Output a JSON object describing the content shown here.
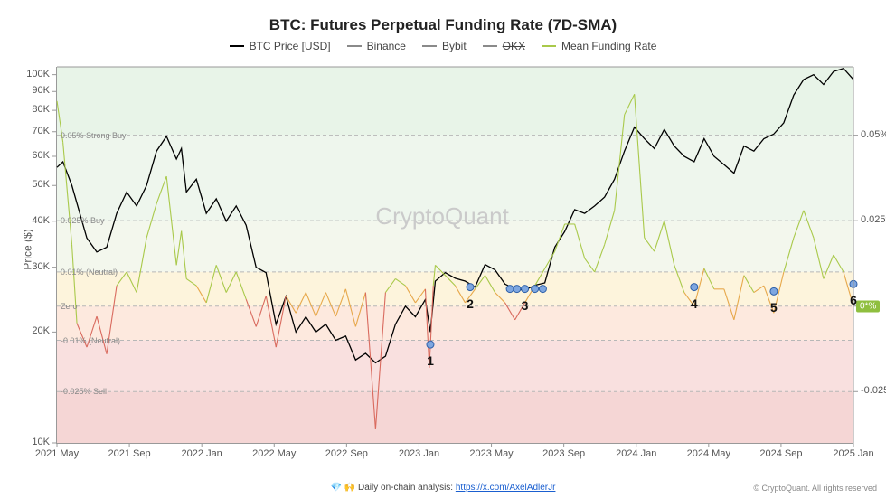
{
  "title": {
    "text": "BTC: Futures Perpetual Funding Rate (7D-SMA)",
    "fontsize": 17
  },
  "legend": {
    "items": [
      {
        "label": "BTC Price [USD]",
        "color": "#000000",
        "strike": false
      },
      {
        "label": "Binance",
        "color": "#8a8a8a",
        "strike": false
      },
      {
        "label": "Bybit",
        "color": "#8a8a8a",
        "strike": false
      },
      {
        "label": "OKX",
        "color": "#8a8a8a",
        "strike": true
      },
      {
        "label": "Mean Funding Rate",
        "color": "#a9c94a",
        "strike": false
      }
    ],
    "fontsize": 12
  },
  "axes": {
    "x": {
      "ticks": [
        "2021 May",
        "2021 Sep",
        "2022 Jan",
        "2022 May",
        "2022 Sep",
        "2023 Jan",
        "2023 May",
        "2023 Sep",
        "2024 Jan",
        "2024 May",
        "2024 Sep",
        "2025 Jan"
      ],
      "fontsize": 11
    },
    "y_left": {
      "label": "Price ($)",
      "scale": "log",
      "min": 10000,
      "max": 105000,
      "ticks": [
        {
          "v": 10000,
          "label": "10K"
        },
        {
          "v": 20000,
          "label": "20K"
        },
        {
          "v": 30000,
          "label": "30K"
        },
        {
          "v": 40000,
          "label": "40K"
        },
        {
          "v": 50000,
          "label": "50K"
        },
        {
          "v": 60000,
          "label": "60K"
        },
        {
          "v": 70000,
          "label": "70K"
        },
        {
          "v": 80000,
          "label": "80K"
        },
        {
          "v": 90000,
          "label": "90K"
        },
        {
          "v": 100000,
          "label": "100K"
        }
      ],
      "fontsize": 11
    },
    "y_right": {
      "min": -0.04,
      "max": 0.07,
      "ticks": [
        {
          "v": 0.05,
          "label": "0.05%"
        },
        {
          "v": 0.025,
          "label": "0.025%"
        },
        {
          "v": 0,
          "label": "0"
        },
        {
          "v": -0.025,
          "label": "-0.025%"
        }
      ],
      "badge": {
        "text": "0*%",
        "bg": "#8fbf3f",
        "at": 0
      },
      "fontsize": 11
    }
  },
  "zones": [
    {
      "from": 0.05,
      "to": 0.07,
      "fill": "#e8f4e8",
      "label": "0.05% Strong Buy"
    },
    {
      "from": 0.025,
      "to": 0.05,
      "fill": "#eef6ed",
      "label": "0.025% Buy"
    },
    {
      "from": 0.01,
      "to": 0.025,
      "fill": "#f3f7ed",
      "label": "0.01% (Neutral)"
    },
    {
      "from": 0.0,
      "to": 0.01,
      "fill": "#fdf4dc",
      "label": "Zero"
    },
    {
      "from": -0.01,
      "to": 0.0,
      "fill": "#fde9de",
      "label": "-0.01% (Neutral)"
    },
    {
      "from": -0.025,
      "to": -0.01,
      "fill": "#f9e0df",
      "label": "-0.025% Sell"
    },
    {
      "from": -0.04,
      "to": -0.025,
      "fill": "#f5d6d5",
      "label": ""
    }
  ],
  "zone_lines": {
    "values": [
      0.05,
      0.025,
      0.01,
      0,
      -0.01,
      -0.025
    ],
    "stroke": "#b7b7b7",
    "dash": "4 3"
  },
  "series": {
    "btc_price": {
      "name": "BTC Price",
      "color": "#000000",
      "width": 1.3,
      "data": [
        [
          0,
          56000
        ],
        [
          0.6,
          58000
        ],
        [
          1.5,
          50000
        ],
        [
          3,
          36000
        ],
        [
          4,
          33000
        ],
        [
          5,
          34000
        ],
        [
          6,
          42000
        ],
        [
          7,
          48000
        ],
        [
          8,
          44000
        ],
        [
          9,
          50000
        ],
        [
          10,
          62000
        ],
        [
          11,
          68000
        ],
        [
          12,
          59000
        ],
        [
          12.5,
          63000
        ],
        [
          13,
          48000
        ],
        [
          14,
          52000
        ],
        [
          15,
          42000
        ],
        [
          16,
          46000
        ],
        [
          17,
          40000
        ],
        [
          18,
          44000
        ],
        [
          19,
          39000
        ],
        [
          20,
          30000
        ],
        [
          21,
          29000
        ],
        [
          22,
          21000
        ],
        [
          23,
          25000
        ],
        [
          24,
          20000
        ],
        [
          25,
          22000
        ],
        [
          26,
          20000
        ],
        [
          27,
          21000
        ],
        [
          28,
          19000
        ],
        [
          29,
          19500
        ],
        [
          30,
          16800
        ],
        [
          31,
          17500
        ],
        [
          32,
          16500
        ],
        [
          33,
          17200
        ],
        [
          34,
          21000
        ],
        [
          35,
          23500
        ],
        [
          36,
          22000
        ],
        [
          37,
          24500
        ],
        [
          37.5,
          20000
        ],
        [
          38,
          27500
        ],
        [
          39,
          29000
        ],
        [
          40,
          28000
        ],
        [
          41,
          27500
        ],
        [
          42,
          26500
        ],
        [
          43,
          30500
        ],
        [
          44,
          29500
        ],
        [
          45,
          27000
        ],
        [
          46,
          26200
        ],
        [
          47,
          26000
        ],
        [
          48,
          26800
        ],
        [
          49,
          27200
        ],
        [
          50,
          34000
        ],
        [
          51,
          37500
        ],
        [
          52,
          43000
        ],
        [
          53,
          42000
        ],
        [
          54,
          44000
        ],
        [
          55,
          46500
        ],
        [
          56,
          52000
        ],
        [
          57,
          62000
        ],
        [
          58,
          72000
        ],
        [
          59,
          67000
        ],
        [
          60,
          63000
        ],
        [
          61,
          71000
        ],
        [
          62,
          64000
        ],
        [
          63,
          60000
        ],
        [
          64,
          58000
        ],
        [
          65,
          67000
        ],
        [
          66,
          60000
        ],
        [
          67,
          57000
        ],
        [
          68,
          54000
        ],
        [
          69,
          64000
        ],
        [
          70,
          62000
        ],
        [
          71,
          67000
        ],
        [
          72,
          69000
        ],
        [
          73,
          74000
        ],
        [
          74,
          88000
        ],
        [
          75,
          97000
        ],
        [
          76,
          100000
        ],
        [
          77,
          94000
        ],
        [
          78,
          102000
        ],
        [
          79,
          104000
        ],
        [
          80,
          97000
        ]
      ]
    },
    "funding_rate": {
      "name": "Mean Funding Rate",
      "width": 1.1,
      "color_pos": "#a9c94a",
      "color_near_zero": "#e7a84b",
      "color_neg": "#d96a5e",
      "data": [
        [
          0,
          0.06
        ],
        [
          0.6,
          0.048
        ],
        [
          1.5,
          0.018
        ],
        [
          2,
          -0.005
        ],
        [
          3,
          -0.012
        ],
        [
          4,
          -0.003
        ],
        [
          5,
          -0.014
        ],
        [
          6,
          0.006
        ],
        [
          7,
          0.01
        ],
        [
          8,
          0.004
        ],
        [
          9,
          0.02
        ],
        [
          10,
          0.03
        ],
        [
          11,
          0.038
        ],
        [
          12,
          0.012
        ],
        [
          12.5,
          0.022
        ],
        [
          13,
          0.008
        ],
        [
          14,
          0.006
        ],
        [
          15,
          0.001
        ],
        [
          16,
          0.012
        ],
        [
          17,
          0.004
        ],
        [
          18,
          0.01
        ],
        [
          19,
          0.002
        ],
        [
          20,
          -0.006
        ],
        [
          21,
          0.003
        ],
        [
          22,
          -0.012
        ],
        [
          23,
          0.003
        ],
        [
          24,
          -0.002
        ],
        [
          25,
          0.004
        ],
        [
          26,
          -0.003
        ],
        [
          27,
          0.004
        ],
        [
          28,
          -0.003
        ],
        [
          29,
          0.005
        ],
        [
          30,
          -0.006
        ],
        [
          31,
          0.004
        ],
        [
          32,
          -0.036
        ],
        [
          33,
          0.004
        ],
        [
          34,
          0.008
        ],
        [
          35,
          0.006
        ],
        [
          36,
          0.001
        ],
        [
          37,
          0.005
        ],
        [
          37.4,
          -0.018
        ],
        [
          37.8,
          0.006
        ],
        [
          38,
          0.012
        ],
        [
          39,
          0.009
        ],
        [
          40,
          0.006
        ],
        [
          41,
          0.001
        ],
        [
          42,
          0.005
        ],
        [
          43,
          0.009
        ],
        [
          44,
          0.004
        ],
        [
          45,
          0.001
        ],
        [
          46,
          -0.004
        ],
        [
          47,
          0.001
        ],
        [
          48,
          0.006
        ],
        [
          49,
          0.011
        ],
        [
          50,
          0.016
        ],
        [
          51,
          0.024
        ],
        [
          52,
          0.024
        ],
        [
          53,
          0.014
        ],
        [
          54,
          0.01
        ],
        [
          55,
          0.018
        ],
        [
          56,
          0.028
        ],
        [
          57,
          0.056
        ],
        [
          58,
          0.062
        ],
        [
          59,
          0.02
        ],
        [
          60,
          0.016
        ],
        [
          61,
          0.025
        ],
        [
          62,
          0.012
        ],
        [
          63,
          0.004
        ],
        [
          64,
          0.0
        ],
        [
          65,
          0.011
        ],
        [
          66,
          0.005
        ],
        [
          67,
          0.005
        ],
        [
          68,
          -0.004
        ],
        [
          69,
          0.009
        ],
        [
          70,
          0.004
        ],
        [
          71,
          0.006
        ],
        [
          72,
          -0.002
        ],
        [
          73,
          0.01
        ],
        [
          74,
          0.02
        ],
        [
          75,
          0.028
        ],
        [
          76,
          0.02
        ],
        [
          77,
          0.008
        ],
        [
          78,
          0.015
        ],
        [
          79,
          0.01
        ],
        [
          80,
          0.0
        ]
      ]
    }
  },
  "markers": {
    "fill": "#7ea6e0",
    "stroke": "#2d5fa8",
    "radius": 4,
    "points": [
      {
        "num": "1",
        "t": 37.5,
        "price": 18500
      },
      {
        "num": "2",
        "t": 41.5,
        "price": 26500
      },
      {
        "num": "3",
        "t": 47,
        "price": 26200,
        "extra_t": [
          45.5,
          46.2,
          48,
          48.8
        ]
      },
      {
        "num": "4",
        "t": 64,
        "price": 26500
      },
      {
        "num": "5",
        "t": 72,
        "price": 25800
      },
      {
        "num": "6",
        "t": 80,
        "price": 27000
      }
    ]
  },
  "x_domain": {
    "min": 0,
    "max": 80
  },
  "watermark": {
    "text": "CryptoQuant",
    "color": "#cacaca",
    "fontsize": 26
  },
  "footer": {
    "text_prefix": "💎 🙌 Daily on-chain analysis: ",
    "link_text": "https://x.com/AxelAdlerJr",
    "copyright": "© CryptoQuant. All rights reserved"
  },
  "grid": {
    "stroke": "#e0e0e0"
  },
  "plot_bg": "#ffffff"
}
